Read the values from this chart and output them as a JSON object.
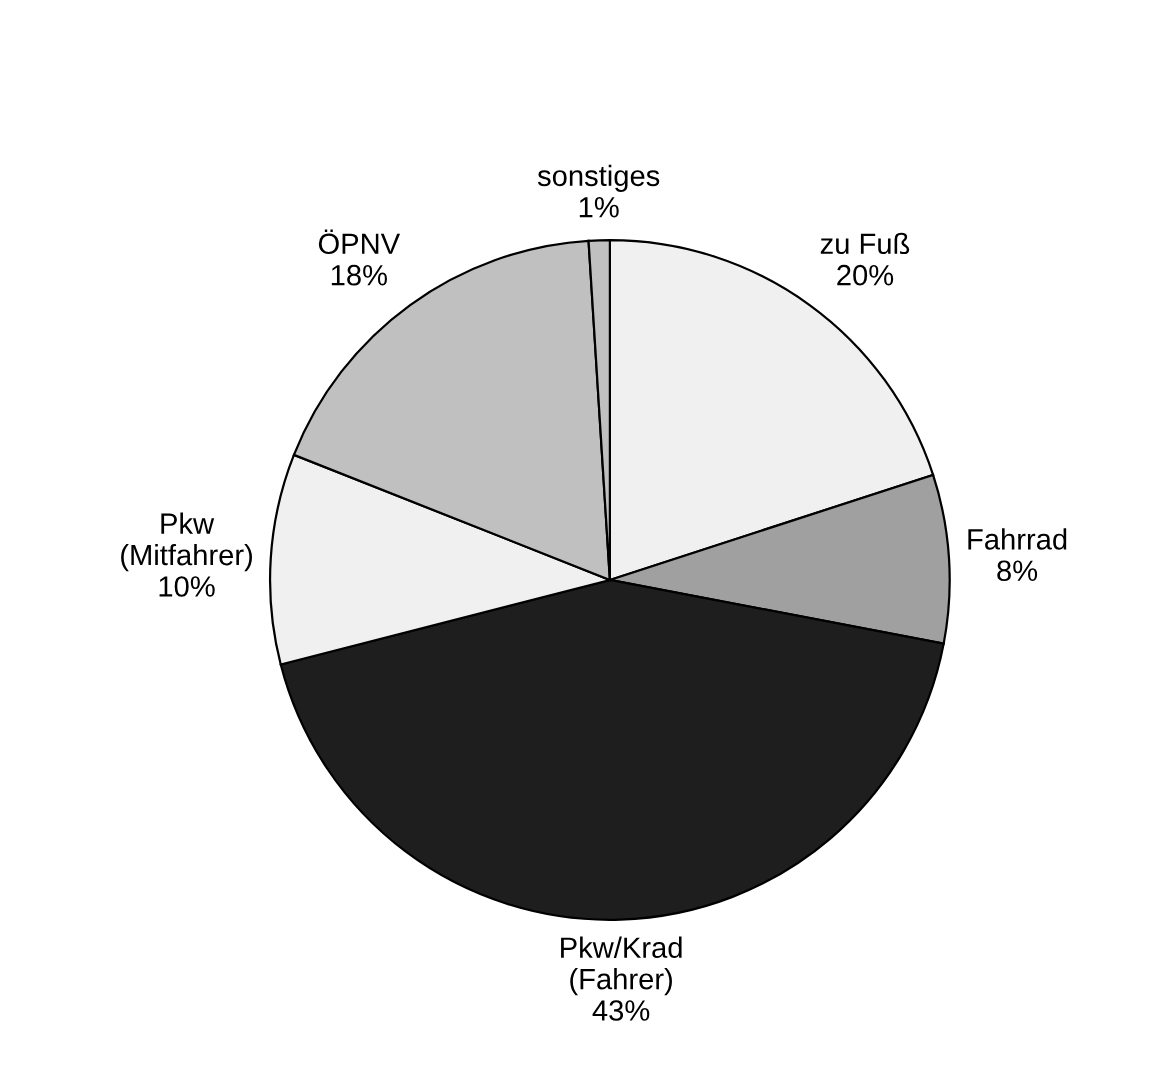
{
  "chart_data": {
    "type": "pie",
    "categories": [
      "zu Fuß",
      "Fahrrad",
      "Pkw/Krad\n(Fahrer)",
      "Pkw\n(Mitfahrer)",
      "ÖPNV",
      "sonstiges"
    ],
    "values": [
      20,
      8,
      43,
      10,
      18,
      1
    ],
    "value_labels": [
      "20%",
      "8%",
      "43%",
      "10%",
      "18%",
      "1%"
    ],
    "colors": [
      "#f0f0f0",
      "#a0a0a0",
      "#1e1e1e",
      "#f0f0f0",
      "#c0c0c0",
      "#c0c0c0"
    ],
    "legend": false
  }
}
